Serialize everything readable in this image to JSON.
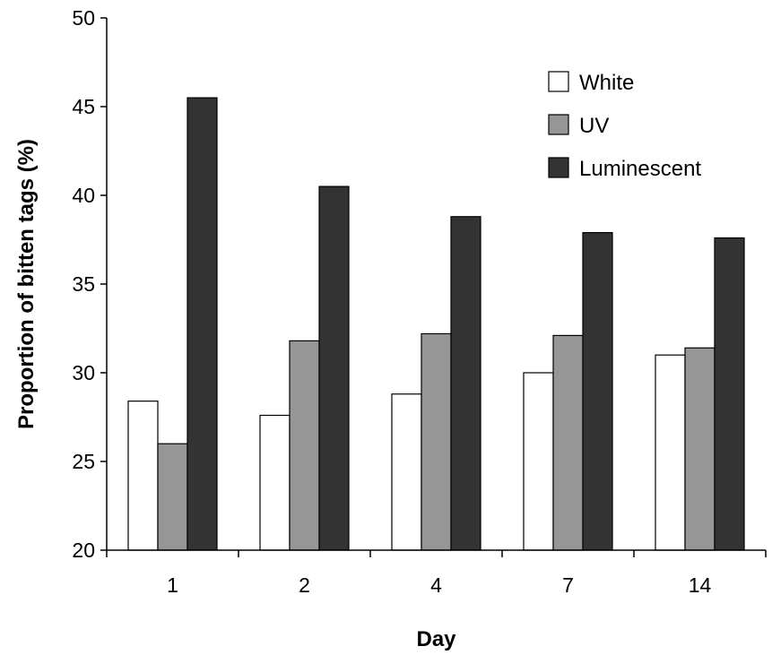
{
  "chart_data": {
    "type": "bar",
    "title": "",
    "xlabel": "Day",
    "ylabel": "Proportion of bitten tags (%)",
    "categories": [
      "1",
      "2",
      "4",
      "7",
      "14"
    ],
    "yticks": [
      "20",
      "25",
      "30",
      "35",
      "40",
      "45",
      "50"
    ],
    "ylim": [
      20,
      50
    ],
    "grid": false,
    "legend_position": "top-right",
    "series": [
      {
        "name": "White",
        "color": "#ffffff",
        "values": [
          28.4,
          27.6,
          28.8,
          30.0,
          31.0
        ]
      },
      {
        "name": "UV",
        "color": "#969696",
        "values": [
          26.0,
          31.8,
          32.2,
          32.1,
          31.4
        ]
      },
      {
        "name": "Luminescent",
        "color": "#333333",
        "values": [
          45.5,
          40.5,
          38.8,
          37.9,
          37.6
        ]
      }
    ]
  }
}
